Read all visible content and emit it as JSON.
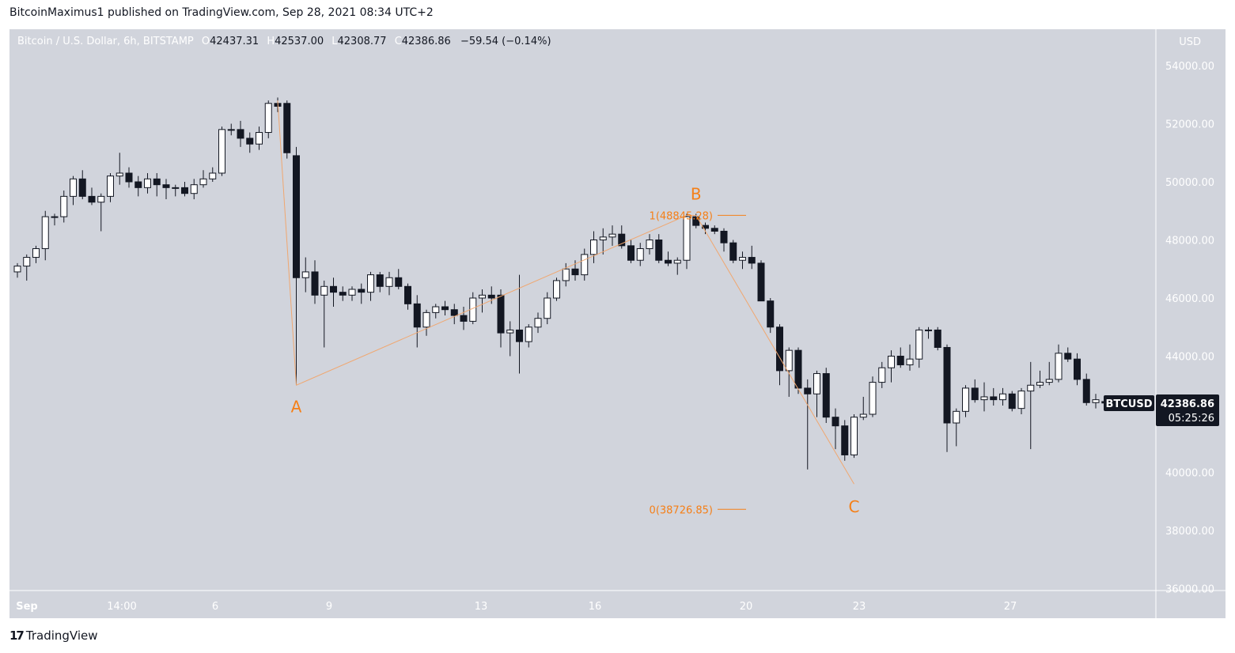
{
  "header": {
    "published_text": "BitcoinMaximus1 published on TradingView.com, Sep 28, 2021 08:34 UTC+2"
  },
  "legend": {
    "symbol_text": "Bitcoin / U.S. Dollar, 6h, BITSTAMP",
    "o_label": "O",
    "o_value": "42437.31",
    "h_label": "H",
    "h_value": "42537.00",
    "l_label": "L",
    "l_value": "42308.77",
    "c_label": "C",
    "c_value": "42386.86",
    "change_text": "−59.54 (−0.14%)"
  },
  "price_scale": {
    "currency": "USD",
    "ticks": [
      "54000.00",
      "52000.00",
      "50000.00",
      "48000.00",
      "46000.00",
      "44000.00",
      "42000.00",
      "40000.00",
      "38000.00",
      "36000.00"
    ]
  },
  "badges": {
    "symbol": "BTCUSD",
    "price": "42386.86",
    "countdown": "05:25:26"
  },
  "annotations": {
    "a_label": "A",
    "b_label": "B",
    "c_label": "C",
    "fib_1_text": "1(48845.28)",
    "fib_0_text": "0(38726.85)"
  },
  "footer": {
    "brand_logo": "17",
    "brand_name": "TradingView"
  },
  "colors": {
    "background": "#d1d4dc",
    "bull_body": "#ffffff",
    "bear_body": "#131722",
    "wick": "#131722",
    "accent": "#f57f17",
    "pattern_line": "#f0a770"
  },
  "chart_data": {
    "type": "candlestick",
    "interval": "6h",
    "x_tick_labels": [
      "Sep",
      "14:00",
      "6",
      "9",
      "13",
      "16",
      "20",
      "23",
      "27"
    ],
    "ylim": [
      36000,
      55000
    ],
    "grid": false,
    "candles": [
      [
        46900,
        47200,
        46700,
        47100
      ],
      [
        47100,
        47500,
        46600,
        47400
      ],
      [
        47400,
        47800,
        47200,
        47700
      ],
      [
        47700,
        49000,
        47300,
        48800
      ],
      [
        48800,
        48900,
        48500,
        48800
      ],
      [
        48800,
        49700,
        48600,
        49500
      ],
      [
        49500,
        50200,
        49200,
        50100
      ],
      [
        50100,
        50400,
        49400,
        49500
      ],
      [
        49500,
        49800,
        49200,
        49300
      ],
      [
        49300,
        49600,
        48300,
        49500
      ],
      [
        49500,
        50300,
        49300,
        50200
      ],
      [
        50200,
        51000,
        49900,
        50300
      ],
      [
        50300,
        50500,
        49800,
        50000
      ],
      [
        50000,
        50200,
        49500,
        49800
      ],
      [
        49800,
        50300,
        49600,
        50100
      ],
      [
        50100,
        50300,
        49500,
        49900
      ],
      [
        49900,
        50100,
        49400,
        49800
      ],
      [
        49800,
        49900,
        49500,
        49800
      ],
      [
        49800,
        50000,
        49500,
        49600
      ],
      [
        49600,
        50100,
        49400,
        49900
      ],
      [
        49900,
        50400,
        49800,
        50100
      ],
      [
        50100,
        50500,
        50000,
        50300
      ],
      [
        50300,
        51900,
        50200,
        51800
      ],
      [
        51800,
        52000,
        51600,
        51800
      ],
      [
        51800,
        52100,
        51200,
        51500
      ],
      [
        51500,
        51700,
        51000,
        51300
      ],
      [
        51300,
        51900,
        51100,
        51700
      ],
      [
        51700,
        52800,
        51500,
        52700
      ],
      [
        52700,
        52900,
        52400,
        52600
      ],
      [
        52700,
        52800,
        50800,
        51000
      ],
      [
        50900,
        51200,
        43000,
        46700
      ],
      [
        46700,
        47400,
        46200,
        46900
      ],
      [
        46900,
        47300,
        45800,
        46100
      ],
      [
        46100,
        46600,
        44300,
        46400
      ],
      [
        46400,
        46700,
        45700,
        46200
      ],
      [
        46200,
        46400,
        45900,
        46100
      ],
      [
        46100,
        46400,
        45900,
        46300
      ],
      [
        46300,
        46500,
        45800,
        46200
      ],
      [
        46200,
        46900,
        45900,
        46800
      ],
      [
        46800,
        46900,
        46200,
        46400
      ],
      [
        46400,
        46900,
        46100,
        46700
      ],
      [
        46700,
        47000,
        46300,
        46400
      ],
      [
        46400,
        46500,
        45600,
        45800
      ],
      [
        45800,
        46100,
        44300,
        45000
      ],
      [
        45000,
        45600,
        44700,
        45500
      ],
      [
        45500,
        45800,
        45300,
        45700
      ],
      [
        45700,
        45900,
        45400,
        45600
      ],
      [
        45600,
        45800,
        45100,
        45400
      ],
      [
        45400,
        45700,
        44900,
        45200
      ],
      [
        45200,
        46200,
        45100,
        46000
      ],
      [
        46000,
        46300,
        45500,
        46100
      ],
      [
        46100,
        46400,
        45800,
        46000
      ],
      [
        46100,
        46300,
        44300,
        44800
      ],
      [
        44800,
        45200,
        44000,
        44900
      ],
      [
        44900,
        46800,
        43400,
        44500
      ],
      [
        44500,
        45100,
        44300,
        45000
      ],
      [
        45000,
        45500,
        44800,
        45300
      ],
      [
        45300,
        46200,
        45100,
        46000
      ],
      [
        46000,
        46700,
        45900,
        46600
      ],
      [
        46600,
        47200,
        46400,
        47000
      ],
      [
        47000,
        47300,
        46600,
        46800
      ],
      [
        46800,
        47700,
        46600,
        47500
      ],
      [
        47500,
        48300,
        47200,
        48000
      ],
      [
        48000,
        48400,
        47500,
        48100
      ],
      [
        48100,
        48500,
        47800,
        48200
      ],
      [
        48200,
        48500,
        47700,
        47800
      ],
      [
        47800,
        48000,
        47200,
        47300
      ],
      [
        47300,
        47900,
        47100,
        47700
      ],
      [
        47700,
        48200,
        47500,
        48000
      ],
      [
        48000,
        48200,
        47200,
        47300
      ],
      [
        47300,
        47600,
        47100,
        47200
      ],
      [
        47200,
        47400,
        46800,
        47300
      ],
      [
        47300,
        48900,
        47000,
        48800
      ],
      [
        48800,
        48900,
        48400,
        48500
      ],
      [
        48500,
        48600,
        48200,
        48400
      ],
      [
        48400,
        48500,
        48200,
        48300
      ],
      [
        48300,
        48400,
        47600,
        47900
      ],
      [
        47900,
        48000,
        47200,
        47300
      ],
      [
        47300,
        47600,
        47000,
        47400
      ],
      [
        47400,
        47800,
        47000,
        47200
      ],
      [
        47200,
        47300,
        46000,
        45900
      ],
      [
        45900,
        46000,
        44800,
        45000
      ],
      [
        45000,
        45100,
        43000,
        43500
      ],
      [
        43500,
        44300,
        42600,
        44200
      ],
      [
        44200,
        44300,
        42700,
        42900
      ],
      [
        42900,
        43200,
        40100,
        42700
      ],
      [
        42700,
        43500,
        41900,
        43400
      ],
      [
        43400,
        43600,
        41700,
        41900
      ],
      [
        41900,
        42200,
        40800,
        41600
      ],
      [
        41600,
        41800,
        40400,
        40600
      ],
      [
        40600,
        42000,
        40500,
        41900
      ],
      [
        41900,
        42600,
        41800,
        42000
      ],
      [
        42000,
        43300,
        41900,
        43100
      ],
      [
        43100,
        43800,
        42900,
        43600
      ],
      [
        43600,
        44200,
        43100,
        44000
      ],
      [
        44000,
        44300,
        43600,
        43700
      ],
      [
        43700,
        44400,
        43500,
        43900
      ],
      [
        43900,
        45000,
        43600,
        44900
      ],
      [
        44900,
        45000,
        44600,
        44900
      ],
      [
        44900,
        45000,
        44200,
        44300
      ],
      [
        44300,
        44400,
        40700,
        41700
      ],
      [
        41700,
        42200,
        40900,
        42100
      ],
      [
        42100,
        43000,
        41900,
        42900
      ],
      [
        42900,
        43200,
        42400,
        42500
      ],
      [
        42500,
        43100,
        42100,
        42600
      ],
      [
        42600,
        42900,
        42300,
        42500
      ],
      [
        42500,
        42900,
        42300,
        42700
      ],
      [
        42700,
        42800,
        42100,
        42200
      ],
      [
        42200,
        42900,
        42000,
        42800
      ],
      [
        42800,
        43800,
        40800,
        43000
      ],
      [
        43000,
        43500,
        42900,
        43100
      ],
      [
        43100,
        43800,
        43000,
        43200
      ],
      [
        43200,
        44400,
        43100,
        44100
      ],
      [
        44100,
        44300,
        43800,
        43900
      ],
      [
        43900,
        44100,
        43000,
        43200
      ],
      [
        43200,
        43400,
        42300,
        42400
      ],
      [
        42400,
        42700,
        42200,
        42500
      ],
      [
        42437.31,
        42537.0,
        42308.77,
        42386.86
      ]
    ],
    "pattern_points": [
      {
        "label": "A",
        "index": 30,
        "price": 43000
      },
      {
        "label": "",
        "index": 72,
        "price": 48845.28
      },
      {
        "label": "B",
        "index": 73,
        "price": 48845.28
      },
      {
        "label": "C",
        "index": 90,
        "price": 39600
      }
    ],
    "fibonacci": [
      {
        "level": 1,
        "price": 48845.28
      },
      {
        "level": 0,
        "price": 38726.85
      }
    ],
    "last_price": 42386.86
  }
}
